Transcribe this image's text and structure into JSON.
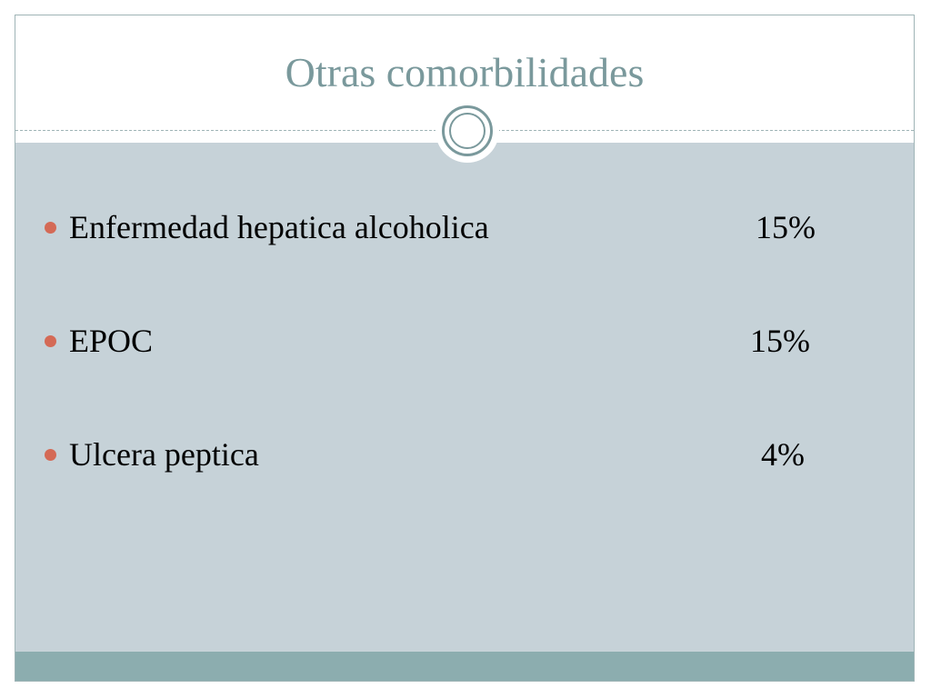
{
  "slide": {
    "title": "Otras comorbilidades",
    "items": [
      {
        "label": "Enfermedad hepatica alcoholica",
        "value": "15%"
      },
      {
        "label": "EPOC",
        "value": "15%"
      },
      {
        "label": "Ulcera peptica",
        "value": "4%"
      }
    ]
  },
  "colors": {
    "title": "#7a999c",
    "body_background": "#c6d2d8",
    "footer_band": "#8cadaf",
    "bullet": "#d46a56",
    "border": "#9fb4b6"
  }
}
